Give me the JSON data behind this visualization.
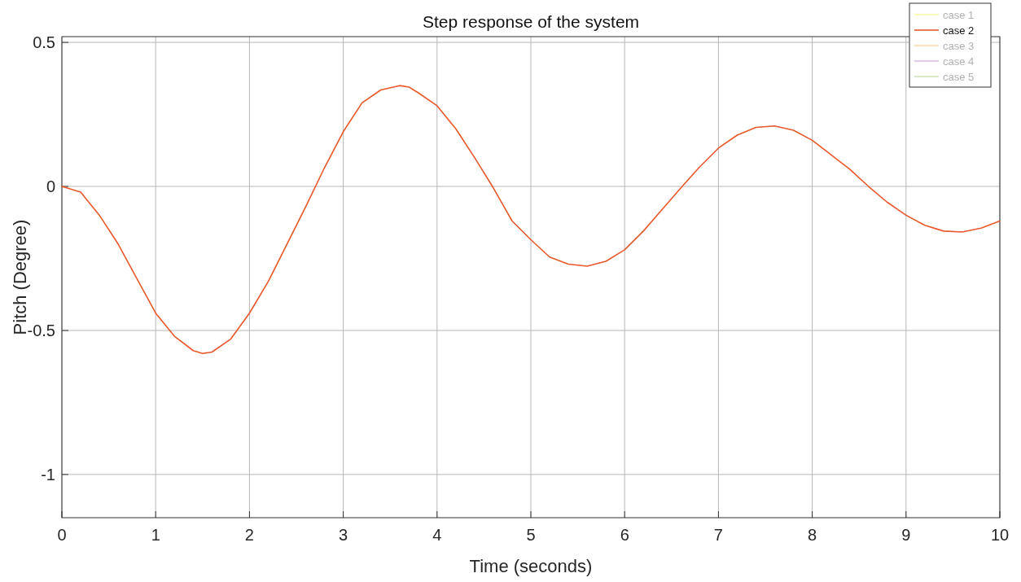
{
  "chart_data": {
    "type": "line",
    "title": "Step response of the system",
    "xlabel": "Time (seconds)",
    "ylabel": "Pitch (Degree)",
    "x": [
      0,
      0.2,
      0.4,
      0.6,
      0.8,
      1.0,
      1.2,
      1.4,
      1.5,
      1.6,
      1.8,
      2.0,
      2.2,
      2.4,
      2.6,
      2.8,
      3.0,
      3.2,
      3.4,
      3.6,
      3.7,
      3.8,
      4.0,
      4.2,
      4.4,
      4.6,
      4.8,
      5.0,
      5.2,
      5.4,
      5.6,
      5.8,
      6.0,
      6.2,
      6.4,
      6.6,
      6.8,
      7.0,
      7.2,
      7.4,
      7.6,
      7.8,
      8.0,
      8.2,
      8.4,
      8.6,
      8.8,
      9.0,
      9.2,
      9.4,
      9.6,
      9.8,
      10
    ],
    "series": [
      {
        "name": "case 1",
        "color": "#fdf8a8",
        "values": [
          null,
          null,
          null,
          null,
          null,
          null,
          null,
          null,
          null,
          null,
          null,
          null,
          null,
          null,
          null,
          null,
          null,
          null,
          null,
          null,
          null,
          null,
          null,
          null,
          null,
          null,
          null,
          null,
          null,
          null,
          null,
          null,
          null,
          null,
          null,
          null,
          null,
          null,
          null,
          null,
          null,
          null,
          null,
          null,
          null,
          null,
          null,
          null,
          null,
          null,
          null,
          null,
          null
        ]
      },
      {
        "name": "case 2",
        "color": "#e8582a",
        "values": [
          0,
          -0.02,
          -0.1,
          -0.2,
          -0.32,
          -0.44,
          -0.52,
          -0.57,
          -0.58,
          -0.575,
          -0.53,
          -0.44,
          -0.33,
          -0.2,
          -0.07,
          0.065,
          0.19,
          0.29,
          0.335,
          0.35,
          0.345,
          0.325,
          0.28,
          0.2,
          0.1,
          -0.005,
          -0.12,
          -0.185,
          -0.245,
          -0.27,
          -0.277,
          -0.26,
          -0.22,
          -0.155,
          -0.08,
          -0.005,
          0.068,
          0.133,
          0.178,
          0.205,
          0.21,
          0.195,
          0.16,
          0.11,
          0.06,
          0.0,
          -0.055,
          -0.1,
          -0.135,
          -0.155,
          -0.158,
          -0.145,
          -0.12
        ]
      },
      {
        "name": "case 3",
        "color": "#fbdcaa",
        "values": [
          null,
          null,
          null,
          null,
          null,
          null,
          null,
          null,
          null,
          null,
          null,
          null,
          null,
          null,
          null,
          null,
          null,
          null,
          null,
          null,
          null,
          null,
          null,
          null,
          null,
          null,
          null,
          null,
          null,
          null,
          null,
          null,
          null,
          null,
          null,
          null,
          null,
          null,
          null,
          null,
          null,
          null,
          null,
          null,
          null,
          null,
          null,
          null,
          null,
          null,
          null,
          null,
          null
        ]
      },
      {
        "name": "case 4",
        "color": "#d6bede",
        "values": [
          null,
          null,
          null,
          null,
          null,
          null,
          null,
          null,
          null,
          null,
          null,
          null,
          null,
          null,
          null,
          null,
          null,
          null,
          null,
          null,
          null,
          null,
          null,
          null,
          null,
          null,
          null,
          null,
          null,
          null,
          null,
          null,
          null,
          null,
          null,
          null,
          null,
          null,
          null,
          null,
          null,
          null,
          null,
          null,
          null,
          null,
          null,
          null,
          null,
          null,
          null,
          null,
          null
        ]
      },
      {
        "name": "case 5",
        "color": "#d3e3bb",
        "values": [
          null,
          null,
          null,
          null,
          null,
          null,
          null,
          null,
          null,
          null,
          null,
          null,
          null,
          null,
          null,
          null,
          null,
          null,
          null,
          null,
          null,
          null,
          null,
          null,
          null,
          null,
          null,
          null,
          null,
          null,
          null,
          null,
          null,
          null,
          null,
          null,
          null,
          null,
          null,
          null,
          null,
          null,
          null,
          null,
          null,
          null,
          null,
          null,
          null,
          null,
          null,
          null,
          null
        ]
      }
    ],
    "xlim": [
      0,
      10
    ],
    "xticks": [
      0,
      1,
      2,
      3,
      4,
      5,
      6,
      7,
      8,
      9,
      10
    ],
    "ylim": [
      -1.15,
      0.52
    ],
    "yticks": [
      {
        "value": -1,
        "label": "-1"
      },
      {
        "value": -0.5,
        "label": "-0.5"
      },
      0,
      0.5
    ],
    "grid": true,
    "legend": "top right",
    "line_style": "solid",
    "marker": "none"
  }
}
